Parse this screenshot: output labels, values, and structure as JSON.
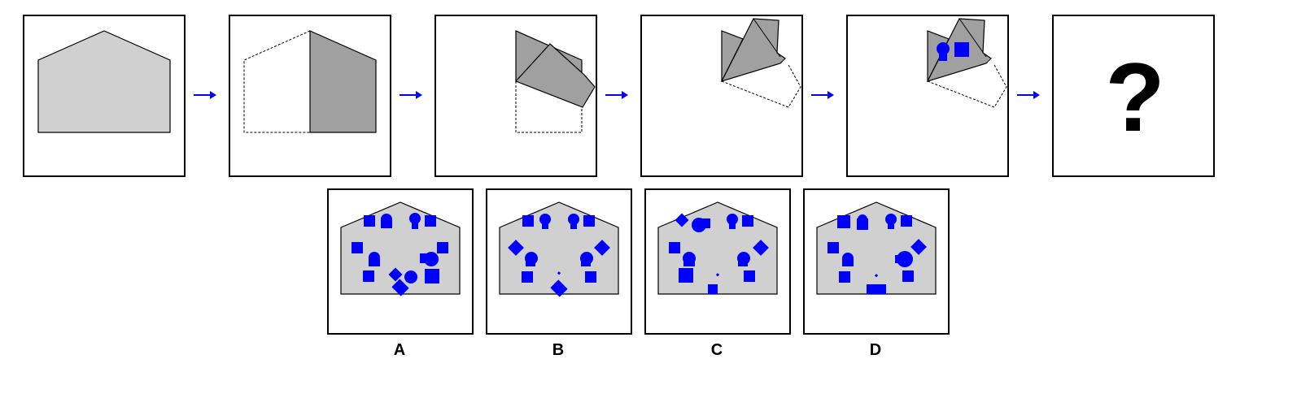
{
  "puzzle": {
    "question_mark": "?",
    "colors": {
      "paper_fill": "#d0d0d0",
      "folded_fill": "#a0a0a0",
      "punch_fill": "#0000ff",
      "arrow_color": "#0000ff",
      "outline": "#000000"
    },
    "steps": [
      {
        "name": "unfolded-paper"
      },
      {
        "name": "fold-left-half-over-right"
      },
      {
        "name": "fold-bottom-up"
      },
      {
        "name": "fold-diagonal"
      },
      {
        "name": "punch-holes"
      }
    ]
  },
  "options": [
    {
      "label": "A"
    },
    {
      "label": "B"
    },
    {
      "label": "C"
    },
    {
      "label": "D"
    }
  ]
}
